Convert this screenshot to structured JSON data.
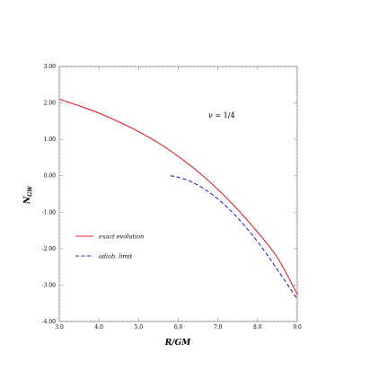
{
  "chart_data": {
    "type": "line",
    "xlabel": "R/GM",
    "ylabel_main": "N",
    "ylabel_sub": "GW",
    "xlim": [
      3.0,
      9.0
    ],
    "ylim": [
      -4.0,
      3.0
    ],
    "x_ticks": [
      3.0,
      4.0,
      5.0,
      6.0,
      7.0,
      8.0,
      9.0
    ],
    "x_tick_labels": [
      "3.0",
      "4.0",
      "5.0",
      "6.0",
      "7.0",
      "8.0",
      "9.0"
    ],
    "y_ticks": [
      3.0,
      2.0,
      1.0,
      0.0,
      -1.0,
      -2.0,
      -3.0,
      -4.0
    ],
    "y_tick_labels": [
      "3.00",
      "2.00",
      "1.00",
      "0.00",
      "-1.00",
      "-2.00",
      "-3.00",
      "-4.00"
    ],
    "annotation": "ν = 1/4",
    "grid": false,
    "legend_position": "lower-left",
    "series": [
      {
        "name": "exact evolution",
        "color": "#e8202a",
        "dash": "solid",
        "x": [
          3.0,
          3.5,
          4.0,
          4.5,
          5.0,
          5.5,
          6.0,
          6.5,
          7.0,
          7.5,
          8.0,
          8.5,
          9.0
        ],
        "y": [
          2.1,
          1.92,
          1.72,
          1.48,
          1.21,
          0.9,
          0.53,
          0.11,
          -0.38,
          -0.93,
          -1.55,
          -2.25,
          -3.25
        ]
      },
      {
        "name": "adiab. limit",
        "color": "#2a2ad8",
        "dash": "dashed",
        "x": [
          5.8,
          6.0,
          6.25,
          6.5,
          6.75,
          7.0,
          7.25,
          7.5,
          7.75,
          8.0,
          8.25,
          8.5,
          8.75,
          9.0
        ],
        "y": [
          0.0,
          -0.04,
          -0.13,
          -0.26,
          -0.43,
          -0.64,
          -0.88,
          -1.16,
          -1.47,
          -1.81,
          -2.18,
          -2.58,
          -2.98,
          -3.38
        ]
      }
    ]
  }
}
